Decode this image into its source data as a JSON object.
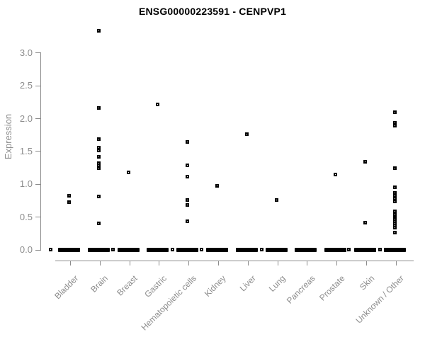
{
  "header": {
    "title": "ENSG00000223591 - CENPVP1"
  },
  "chart_data": {
    "type": "scatter",
    "title": "ENSG00000223591 - CENPVP1",
    "subtitle": "",
    "xlabel": "",
    "ylabel": "Expression",
    "ylim": [
      0.0,
      3.4
    ],
    "yticks": [
      0.0,
      0.5,
      1.0,
      1.5,
      2.0,
      2.5,
      3.0
    ],
    "ytick_labels": [
      "0.0",
      "0.5",
      "1.0",
      "1.5",
      "2.0",
      "2.5",
      "3.0"
    ],
    "grid": false,
    "legend_position": "none",
    "point_symbol": "open-square",
    "point_color": "#000000",
    "axis_color": "#8c8c8c",
    "title_color": "#000000",
    "categories": [
      "Bladder",
      "Brain",
      "Breast",
      "Gastric",
      "Hematopoietic cells",
      "Kidney",
      "Liver",
      "Lung",
      "Pancreas",
      "Prostate",
      "Skin",
      "Unknown / Other"
    ],
    "series": [
      {
        "name": "Bladder",
        "values": [
          0.83,
          0.73
        ],
        "zero_cluster": true,
        "zero_extra": [
          -28
        ]
      },
      {
        "name": "Brain",
        "values": [
          3.35,
          2.17,
          1.69,
          1.57,
          1.52,
          1.42,
          1.33,
          1.29,
          1.25,
          0.82,
          0.41
        ],
        "zero_cluster": true,
        "zero_extra": [
          18
        ]
      },
      {
        "name": "Breast",
        "values": [
          1.19
        ],
        "zero_cluster": true,
        "zero_extra": []
      },
      {
        "name": "Gastric",
        "values": [
          2.22
        ],
        "zero_cluster": true,
        "zero_extra": [
          19
        ]
      },
      {
        "name": "Hematopoietic cells",
        "values": [
          1.65,
          1.29,
          1.12,
          0.77,
          0.69,
          0.44
        ],
        "zero_cluster": true,
        "zero_extra": [
          18
        ]
      },
      {
        "name": "Kidney",
        "values": [
          0.98
        ],
        "zero_cluster": true,
        "zero_extra": []
      },
      {
        "name": "Liver",
        "values": [
          1.77
        ],
        "zero_cluster": true,
        "zero_extra": [
          19
        ]
      },
      {
        "name": "Lung",
        "values": [
          0.77
        ],
        "zero_cluster": true,
        "zero_extra": []
      },
      {
        "name": "Pancreas",
        "values": [],
        "zero_cluster": true,
        "zero_extra": []
      },
      {
        "name": "Prostate",
        "values": [
          1.16
        ],
        "zero_cluster": true,
        "zero_extra": [
          17
        ]
      },
      {
        "name": "Skin",
        "values": [
          1.35,
          0.42
        ],
        "zero_cluster": true,
        "zero_extra": []
      },
      {
        "name": "Unknown / Other",
        "values": [
          2.1,
          1.94,
          1.9,
          1.25,
          0.96,
          0.87,
          0.83,
          0.79,
          0.74,
          0.59,
          0.55,
          0.5,
          0.47,
          0.44,
          0.41,
          0.38,
          0.34,
          0.27
        ],
        "zero_cluster": true,
        "zero_extra": [
          -23
        ]
      }
    ]
  }
}
